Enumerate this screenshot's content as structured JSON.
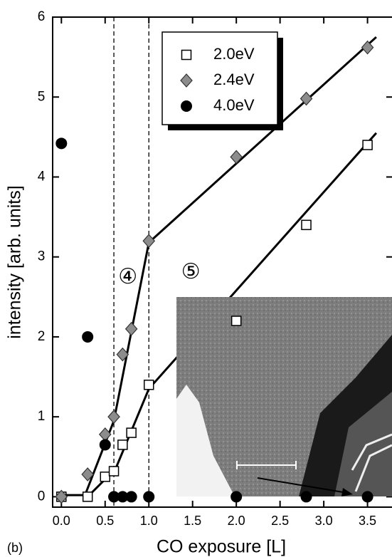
{
  "chart_data": {
    "type": "scatter",
    "panel_label": "(b)",
    "x_label": "CO exposure  [L]",
    "y_label": "intensity  [arb. units]",
    "xlim": [
      -0.1,
      3.78
    ],
    "ylim": [
      -0.13,
      6
    ],
    "xticks": [
      {
        "value": 0,
        "label": "0.0"
      },
      0.5,
      {
        "value": 1,
        "label": "1.0"
      },
      1.5,
      {
        "value": 2,
        "label": "2.0"
      },
      2.5,
      {
        "value": 3,
        "label": "3.0"
      },
      3.5
    ],
    "yticks": [
      0,
      1,
      2,
      3,
      4,
      5,
      6
    ],
    "vlines": [
      0.6,
      1.0
    ],
    "legend": "upper-center",
    "series": [
      {
        "name": "2.0eV",
        "marker": "square",
        "color": "#000000",
        "x": [
          0,
          0.3,
          0.5,
          0.6,
          0.7,
          0.8,
          1.0,
          2.0,
          2.8,
          3.5
        ],
        "values": [
          0,
          0,
          0.25,
          0.32,
          0.65,
          0.8,
          1.4,
          2.2,
          3.4,
          4.4
        ],
        "fit": {
          "x": [
            0.3,
            0.62,
            1.0,
            3.6
          ],
          "y": [
            0,
            0.35,
            1.35,
            4.55
          ]
        }
      },
      {
        "name": "2.4eV",
        "marker": "diamond",
        "color": "#8c8c8c",
        "x": [
          0,
          0.3,
          0.5,
          0.6,
          0.7,
          0.8,
          1.0,
          2.0,
          2.8,
          3.5
        ],
        "values": [
          0,
          0.28,
          0.78,
          1.0,
          1.78,
          2.1,
          3.2,
          4.25,
          4.98,
          5.62
        ],
        "fit": {
          "x": [
            0,
            0.27,
            0.6,
            1.0,
            3.6
          ],
          "y": [
            0.02,
            0.02,
            0.95,
            3.18,
            5.75
          ]
        }
      },
      {
        "name": "4.0eV",
        "marker": "circle",
        "color": "#000000",
        "x": [
          0,
          0.3,
          0.5,
          0.6,
          0.7,
          0.8,
          1.0,
          2.0,
          2.8,
          3.5
        ],
        "values": [
          4.42,
          2.0,
          0.65,
          0,
          0,
          0,
          0,
          0,
          0,
          0
        ]
      }
    ],
    "annotations": [
      {
        "text": "④",
        "x": 0.76,
        "y": 2.74
      },
      {
        "text": "⑤",
        "x": 1.48,
        "y": 2.8
      }
    ]
  }
}
